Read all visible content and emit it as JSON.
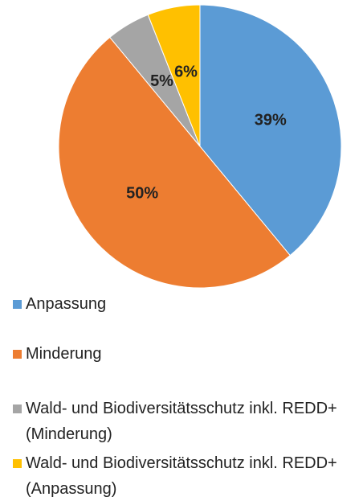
{
  "chart_data": {
    "type": "pie",
    "categories": [
      "Anpassung",
      "Minderung",
      "Wald- und Biodiversitätsschutz inkl. REDD+ (Minderung)",
      "Wald- und Biodiversitätsschutz inkl. REDD+ (Anpassung)"
    ],
    "values": [
      39,
      50,
      5,
      6
    ],
    "value_labels": [
      "39%",
      "50%",
      "5%",
      "6%"
    ],
    "colors": [
      "#5b9bd5",
      "#ed7d31",
      "#a5a5a5",
      "#ffc000"
    ],
    "legend": "bottom"
  }
}
